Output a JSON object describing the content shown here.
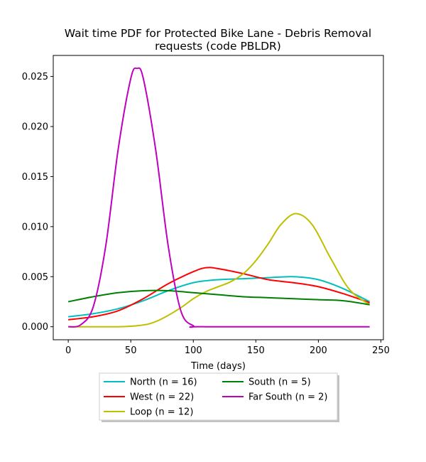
{
  "chart_data": {
    "type": "line",
    "title_lines": [
      "Wait time PDF for Protected Bike Lane - Debris Removal",
      "requests (code PBLDR)"
    ],
    "xlabel": "Time (days)",
    "ylabel": "",
    "xlim": [
      -12,
      252
    ],
    "ylim": [
      -0.0013,
      0.0271
    ],
    "xticks": [
      0,
      50,
      100,
      150,
      200,
      250
    ],
    "yticks": [
      0.0,
      0.005,
      0.01,
      0.015,
      0.02,
      0.025
    ],
    "ytick_labels": [
      "0.000",
      "0.005",
      "0.010",
      "0.015",
      "0.020",
      "0.025"
    ],
    "grid": false,
    "legend_placement": "below plot, centered, two columns",
    "series": [
      {
        "name": "North (n = 16)",
        "color": "#00bfbf",
        "x": [
          0,
          20,
          40,
          60,
          80,
          100,
          120,
          140,
          160,
          180,
          200,
          220,
          241
        ],
        "y": [
          0.001,
          0.0013,
          0.0018,
          0.0026,
          0.0036,
          0.0044,
          0.0047,
          0.0048,
          0.0049,
          0.005,
          0.0047,
          0.0038,
          0.0025
        ]
      },
      {
        "name": "West (n = 22)",
        "color": "#ff0000",
        "x": [
          0,
          20,
          40,
          60,
          80,
          100,
          110,
          120,
          140,
          160,
          180,
          200,
          220,
          241
        ],
        "y": [
          0.0007,
          0.001,
          0.0016,
          0.0028,
          0.0043,
          0.0055,
          0.0059,
          0.0058,
          0.0053,
          0.0047,
          0.0044,
          0.004,
          0.0033,
          0.0024
        ]
      },
      {
        "name": "Loop (n = 12)",
        "color": "#bfbf00",
        "x": [
          0,
          40,
          55,
          65,
          75,
          90,
          100,
          110,
          120,
          130,
          140,
          150,
          160,
          170,
          182,
          195,
          210,
          225,
          241
        ],
        "y": [
          0.0,
          0.0,
          0.0001,
          0.0003,
          0.0008,
          0.0019,
          0.0028,
          0.0035,
          0.004,
          0.0045,
          0.0053,
          0.0066,
          0.0083,
          0.0102,
          0.0113,
          0.0102,
          0.0068,
          0.0037,
          0.0022
        ]
      },
      {
        "name": "South (n = 5)",
        "color": "#008000",
        "x": [
          0,
          20,
          40,
          60,
          80,
          100,
          120,
          140,
          160,
          180,
          200,
          220,
          241
        ],
        "y": [
          0.0025,
          0.003,
          0.0034,
          0.0036,
          0.0036,
          0.0034,
          0.0032,
          0.003,
          0.0029,
          0.0028,
          0.0027,
          0.0026,
          0.0022
        ]
      },
      {
        "name": "Far South (n = 2)",
        "color": "#bf00bf",
        "x": [
          0,
          10,
          20,
          30,
          40,
          50,
          55,
          60,
          70,
          80,
          90,
          100,
          110,
          241
        ],
        "y": [
          0.0,
          0.0002,
          0.002,
          0.0081,
          0.0178,
          0.0248,
          0.0258,
          0.0248,
          0.0176,
          0.008,
          0.0016,
          0.0001,
          0.0,
          0.0
        ]
      }
    ]
  }
}
